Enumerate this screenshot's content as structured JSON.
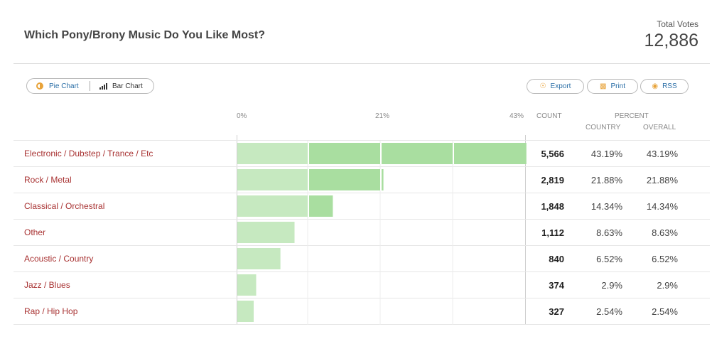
{
  "poll": {
    "title": "Which Pony/Brony Music Do You Like Most?",
    "total_votes_label": "Total Votes",
    "total_votes": "12,886"
  },
  "toolbar": {
    "pie_label": "Pie Chart",
    "bar_label": "Bar Chart",
    "export_label": "Export",
    "print_label": "Print",
    "rss_label": "RSS"
  },
  "columns": {
    "count": "COUNT",
    "percent": "PERCENT",
    "country": "COUNTRY",
    "overall": "OVERALL"
  },
  "colors": {
    "bar": "#a9dea0",
    "bar_light": "#c6e9c0",
    "category_link": "#a83232"
  },
  "chart_data": {
    "type": "bar",
    "orientation": "horizontal",
    "categories": [
      "Electronic / Dubstep / Trance / Etc",
      "Rock / Metal",
      "Classical / Orchestral",
      "Other",
      "Acoustic / Country",
      "Jazz / Blues",
      "Rap / Hip Hop"
    ],
    "values": [
      43.19,
      21.88,
      14.34,
      8.63,
      6.52,
      2.9,
      2.54
    ],
    "xlim": [
      0,
      43
    ],
    "x_ticks": [
      "0%",
      "21%",
      "43%"
    ],
    "rows": [
      {
        "category": "Electronic / Dubstep / Trance / Etc",
        "count": "5,566",
        "country": "43.19%",
        "overall": "43.19%"
      },
      {
        "category": "Rock / Metal",
        "count": "2,819",
        "country": "21.88%",
        "overall": "21.88%"
      },
      {
        "category": "Classical / Orchestral",
        "count": "1,848",
        "country": "14.34%",
        "overall": "14.34%"
      },
      {
        "category": "Other",
        "count": "1,112",
        "country": "8.63%",
        "overall": "8.63%"
      },
      {
        "category": "Acoustic / Country",
        "count": "840",
        "country": "6.52%",
        "overall": "6.52%"
      },
      {
        "category": "Jazz / Blues",
        "count": "374",
        "country": "2.9%",
        "overall": "2.9%"
      },
      {
        "category": "Rap / Hip Hop",
        "count": "327",
        "country": "2.54%",
        "overall": "2.54%"
      }
    ]
  }
}
